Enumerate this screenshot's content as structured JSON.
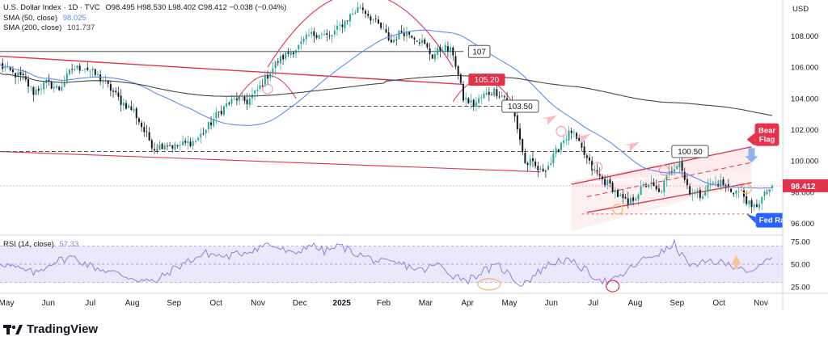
{
  "legend": {
    "symbol": "U.S. Dollar Index · 1D · TVC",
    "ohlc": "O98.495  H98.530  L98.402  C98.412  −0.038 (−0.04%)",
    "sma50_label": "SMA (50, close)",
    "sma50_value": "98.025",
    "sma200_label": "SMA (200, close)",
    "sma200_value": "101.737"
  },
  "currency": "USD",
  "brand": "TradingView",
  "colors": {
    "up": "#26a69a",
    "down": "#131722",
    "sma50": "#5b8def",
    "sma200": "#444444",
    "resistance": "#e0334a",
    "rsi": "#8f7fd6",
    "price_tag": "#e0334a",
    "callout_red": "#e8314a",
    "callout_blue": "#2962ff"
  },
  "annotations": {
    "level_107": "107",
    "level_10520": "105.20",
    "level_10350": "103.50",
    "level_10050": "100.50",
    "bear_flag": "Bear\nFlag",
    "fed_cuts": "Fed Rate Cuts",
    "last_price": "98.412"
  },
  "chart_data": [
    {
      "type": "candlestick",
      "title": "U.S. Dollar Index · 1D · TVC",
      "x_ticks": [
        "May",
        "Jun",
        "Jul",
        "Aug",
        "Sep",
        "Oct",
        "Nov",
        "Dec",
        "2025",
        "Feb",
        "Mar",
        "Apr",
        "May",
        "Jun",
        "Jul",
        "Aug",
        "Sep",
        "Oct",
        "Nov"
      ],
      "y_ticks": [
        "108.000",
        "106.000",
        "104.000",
        "102.000",
        "100.000",
        "98.000",
        "96.000"
      ],
      "ylim": [
        95.3,
        110.3
      ],
      "close_path": [
        [
          0,
          106.1
        ],
        [
          5,
          105.6
        ],
        [
          9,
          105.3
        ],
        [
          13,
          104.4
        ],
        [
          18,
          105.0
        ],
        [
          23,
          104.6
        ],
        [
          28,
          105.9
        ],
        [
          33,
          106.0
        ],
        [
          38,
          105.4
        ],
        [
          43,
          104.6
        ],
        [
          47,
          103.8
        ],
        [
          52,
          103.2
        ],
        [
          56,
          101.9
        ],
        [
          60,
          100.8
        ],
        [
          64,
          101.1
        ],
        [
          68,
          100.9
        ],
        [
          72,
          101.1
        ],
        [
          76,
          101.3
        ],
        [
          80,
          102.0
        ],
        [
          84,
          102.9
        ],
        [
          88,
          103.6
        ],
        [
          92,
          104.0
        ],
        [
          96,
          103.8
        ],
        [
          100,
          104.5
        ],
        [
          104,
          105.5
        ],
        [
          108,
          106.4
        ],
        [
          112,
          106.9
        ],
        [
          116,
          107.3
        ],
        [
          120,
          108.0
        ],
        [
          124,
          108.2
        ],
        [
          128,
          107.9
        ],
        [
          132,
          108.6
        ],
        [
          136,
          109.3
        ],
        [
          140,
          109.9
        ],
        [
          144,
          109.2
        ],
        [
          148,
          108.5
        ],
        [
          152,
          107.6
        ],
        [
          156,
          108.3
        ],
        [
          160,
          108.1
        ],
        [
          164,
          107.6
        ],
        [
          168,
          106.7
        ],
        [
          172,
          107.3
        ],
        [
          176,
          106.9
        ],
        [
          180,
          104.0
        ],
        [
          184,
          103.6
        ],
        [
          188,
          104.2
        ],
        [
          192,
          104.5
        ],
        [
          196,
          104.1
        ],
        [
          198,
          103.7
        ],
        [
          200,
          102.8
        ],
        [
          202,
          101.4
        ],
        [
          204,
          99.8
        ],
        [
          206,
          99.9
        ],
        [
          210,
          99.3
        ],
        [
          214,
          99.9
        ],
        [
          218,
          101.2
        ],
        [
          222,
          101.9
        ],
        [
          226,
          100.7
        ],
        [
          230,
          99.5
        ],
        [
          234,
          98.8
        ],
        [
          238,
          98.3
        ],
        [
          240,
          97.8
        ],
        [
          244,
          97.2
        ],
        [
          248,
          98.0
        ],
        [
          252,
          98.6
        ],
        [
          256,
          97.9
        ],
        [
          260,
          99.2
        ],
        [
          264,
          100.1
        ],
        [
          266,
          98.8
        ],
        [
          268,
          98.1
        ],
        [
          272,
          97.8
        ],
        [
          276,
          98.5
        ],
        [
          280,
          98.6
        ],
        [
          284,
          98.1
        ],
        [
          288,
          98.0
        ],
        [
          290,
          97.5
        ],
        [
          292,
          96.9
        ],
        [
          294,
          97.2
        ],
        [
          298,
          98.0
        ],
        [
          300,
          98.41
        ]
      ],
      "series": [
        {
          "name": "SMA (50, close)",
          "value": 98.025
        },
        {
          "name": "SMA (200, close)",
          "value": 101.737
        }
      ]
    },
    {
      "type": "line",
      "title": "RSI (14, close)",
      "subtitle_value": "57.33",
      "y_ticks": [
        "75.00",
        "50.00",
        "25.00"
      ],
      "ylim": [
        19,
        81
      ],
      "levels": [
        70,
        50,
        30
      ],
      "values_path": [
        [
          0,
          52
        ],
        [
          8,
          44
        ],
        [
          14,
          40
        ],
        [
          20,
          52
        ],
        [
          28,
          58
        ],
        [
          36,
          47
        ],
        [
          44,
          41
        ],
        [
          50,
          36
        ],
        [
          56,
          32
        ],
        [
          60,
          30
        ],
        [
          66,
          42
        ],
        [
          72,
          52
        ],
        [
          80,
          62
        ],
        [
          88,
          58
        ],
        [
          96,
          64
        ],
        [
          104,
          72
        ],
        [
          108,
          68
        ],
        [
          114,
          60
        ],
        [
          120,
          72
        ],
        [
          126,
          64
        ],
        [
          132,
          70
        ],
        [
          140,
          60
        ],
        [
          148,
          52
        ],
        [
          156,
          50
        ],
        [
          164,
          43
        ],
        [
          170,
          50
        ],
        [
          176,
          38
        ],
        [
          182,
          33
        ],
        [
          188,
          43
        ],
        [
          194,
          48
        ],
        [
          198,
          38
        ],
        [
          202,
          28
        ],
        [
          206,
          34
        ],
        [
          212,
          48
        ],
        [
          218,
          55
        ],
        [
          224,
          50
        ],
        [
          230,
          38
        ],
        [
          236,
          30
        ],
        [
          240,
          34
        ],
        [
          246,
          48
        ],
        [
          252,
          58
        ],
        [
          258,
          64
        ],
        [
          262,
          72
        ],
        [
          266,
          55
        ],
        [
          270,
          47
        ],
        [
          276,
          54
        ],
        [
          282,
          50
        ],
        [
          288,
          48
        ],
        [
          292,
          38
        ],
        [
          296,
          50
        ],
        [
          300,
          57.33
        ]
      ]
    }
  ]
}
